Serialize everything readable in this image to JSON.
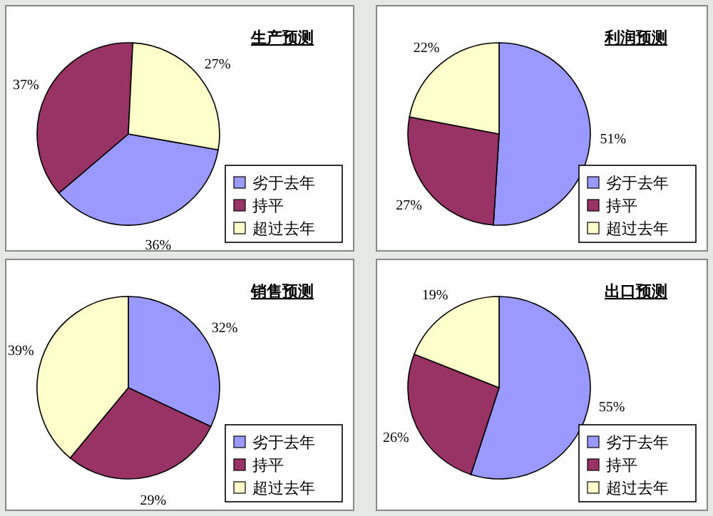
{
  "chart_data": [
    {
      "type": "pie",
      "title": "生产预测",
      "categories": [
        "劣于去年",
        "持平",
        "超过去年"
      ],
      "values": [
        36,
        37,
        27
      ],
      "value_labels": [
        "36%",
        "37%",
        "27%"
      ],
      "colors": [
        "#9999ff",
        "#993366",
        "#ffffcc"
      ],
      "legend": "bottom right"
    },
    {
      "type": "pie",
      "title": "利润预测",
      "categories": [
        "劣于去年",
        "持平",
        "超过去年"
      ],
      "values": [
        51,
        27,
        22
      ],
      "value_labels": [
        "51%",
        "27%",
        "22%"
      ],
      "colors": [
        "#9999ff",
        "#993366",
        "#ffffcc"
      ],
      "legend": "bottom right"
    },
    {
      "type": "pie",
      "title": "销售预测",
      "categories": [
        "劣于去年",
        "持平",
        "超过去年"
      ],
      "values": [
        32,
        29,
        39
      ],
      "value_labels": [
        "32%",
        "29%",
        "39%"
      ],
      "colors": [
        "#9999ff",
        "#993366",
        "#ffffcc"
      ],
      "legend": "bottom right"
    },
    {
      "type": "pie",
      "title": "出口预测",
      "categories": [
        "劣于去年",
        "持平",
        "超过去年"
      ],
      "values": [
        55,
        26,
        19
      ],
      "value_labels": [
        "55%",
        "26%",
        "19%"
      ],
      "colors": [
        "#9999ff",
        "#993366",
        "#ffffcc"
      ],
      "legend": "bottom right"
    }
  ]
}
